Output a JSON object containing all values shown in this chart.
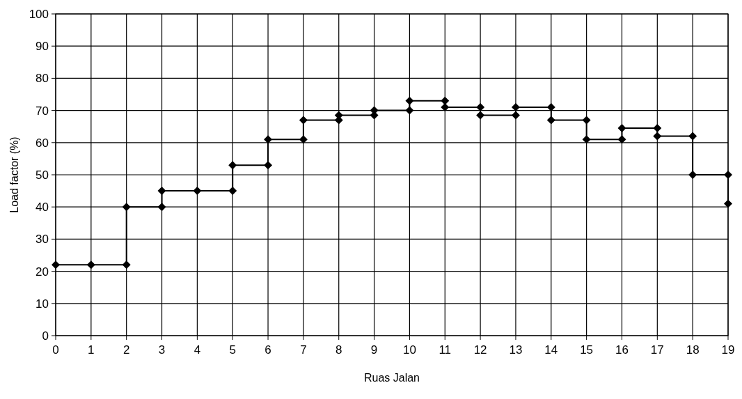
{
  "chart_data": {
    "type": "line",
    "xlabel": "Ruas Jalan",
    "ylabel": "Load factor (%)",
    "x": [
      0,
      1,
      2,
      2,
      3,
      3,
      4,
      5,
      5,
      6,
      6,
      7,
      7,
      8,
      8,
      9,
      9,
      10,
      10,
      11,
      11,
      12,
      12,
      13,
      13,
      14,
      14,
      15,
      15,
      16,
      16,
      17,
      17,
      18,
      18,
      19,
      19
    ],
    "series": [
      {
        "color": "#000000",
        "values": [
          22,
          22,
          22,
          40,
          40,
          45,
          45,
          45,
          53,
          53,
          61,
          61,
          67,
          67,
          68.5,
          68.5,
          70,
          70,
          73,
          73,
          71,
          71,
          68.5,
          68.5,
          71,
          71,
          67,
          67,
          61,
          61,
          64.5,
          64.5,
          62,
          62,
          50,
          50,
          41
        ]
      }
    ],
    "xlim": [
      0,
      19
    ],
    "xticks": [
      0,
      1,
      2,
      3,
      4,
      5,
      6,
      7,
      8,
      9,
      10,
      11,
      12,
      13,
      14,
      15,
      16,
      17,
      18,
      19
    ],
    "ylim": [
      0,
      100
    ],
    "yticks": [
      0,
      10,
      20,
      30,
      40,
      50,
      60,
      70,
      80,
      90,
      100
    ],
    "grid": true,
    "marker": "diamond",
    "line_style": "solid"
  }
}
